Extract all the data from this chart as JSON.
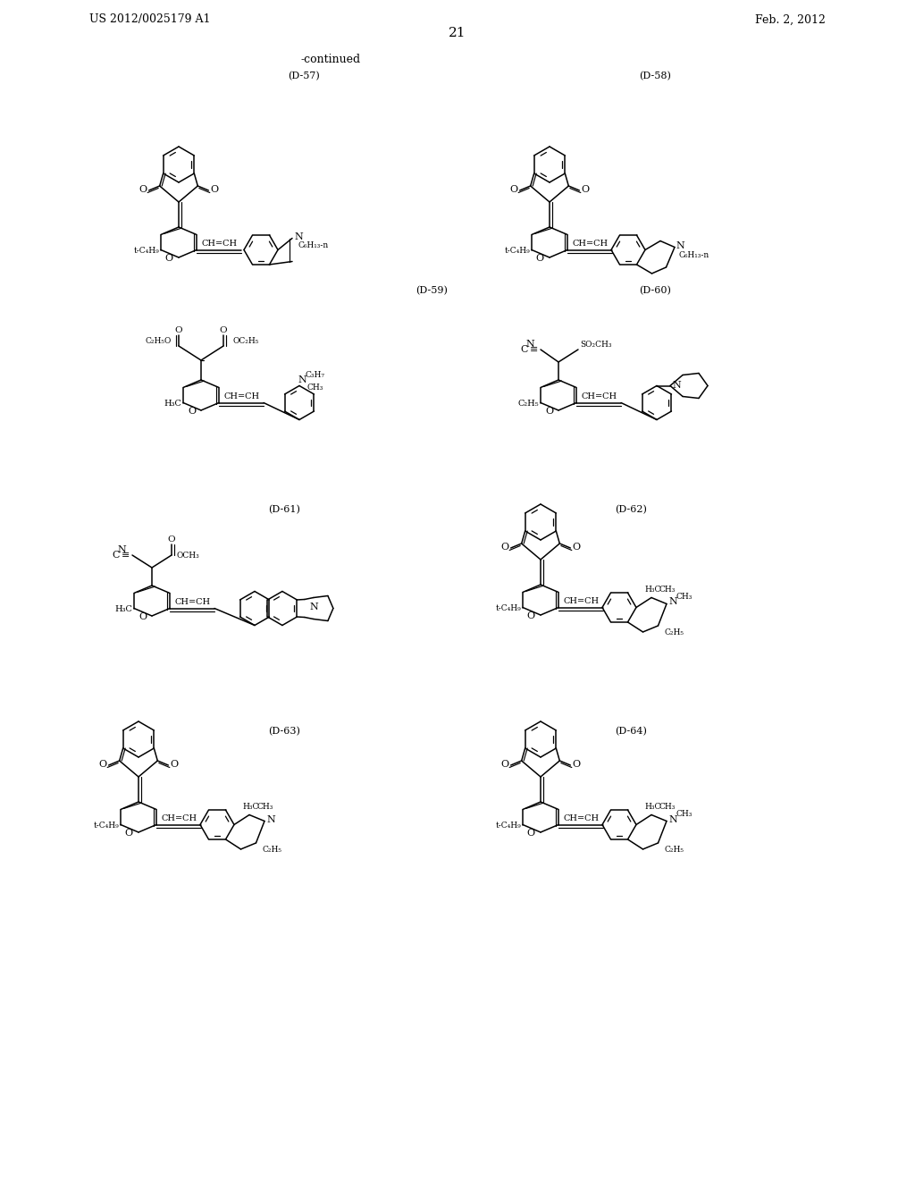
{
  "header_left": "US 2012/0025179 A1",
  "header_right": "Feb. 2, 2012",
  "page_num": "21",
  "continued": "-continued",
  "bg": "#ffffff",
  "labels": {
    "D57": "(D-57)",
    "D58": "(D-58)",
    "D59": "(D-59)",
    "D60": "(D-60)",
    "D61": "(D-61)",
    "D62": "(D-62)",
    "D63": "(D-63)",
    "D64": "(D-64)"
  }
}
